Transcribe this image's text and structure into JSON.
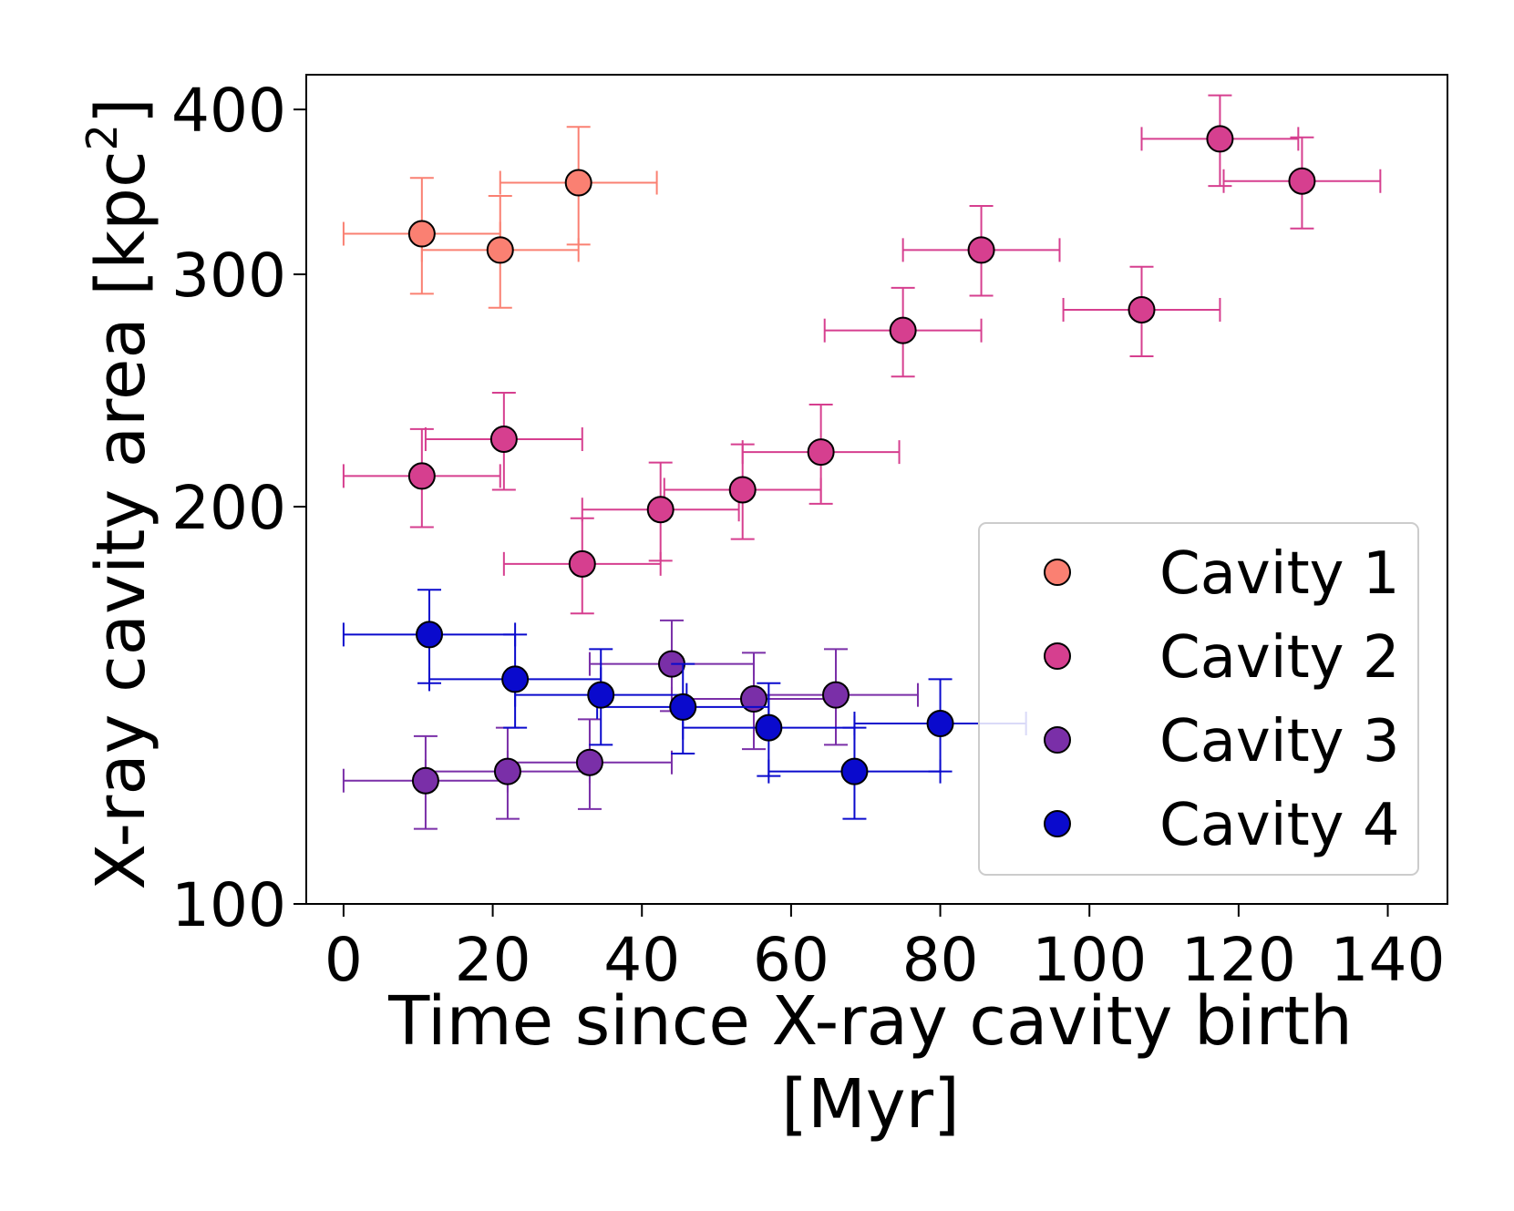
{
  "chart_data": {
    "type": "scatter",
    "title": "",
    "xlabel": "Time since X-ray cavity birth",
    "xlabel_line2": "[Myr]",
    "ylabel_prefix": "X-ray cavity area [kpc",
    "ylabel_sup": "2",
    "ylabel_suffix": "]",
    "xlim": [
      -5,
      148
    ],
    "ylim": [
      100,
      425
    ],
    "yscale": "log",
    "x_ticks": [
      0,
      20,
      40,
      60,
      80,
      100,
      120,
      140
    ],
    "x_tick_labels": [
      "0",
      "20",
      "40",
      "60",
      "80",
      "100",
      "120",
      "140"
    ],
    "y_ticks": [
      100,
      200,
      300,
      400
    ],
    "y_tick_labels": [
      "100",
      "200",
      "300",
      "400"
    ],
    "grid": false,
    "legend_position": "lower-right",
    "series": [
      {
        "name": "Cavity 1",
        "color": "#fa8072",
        "points": [
          {
            "x": 10.5,
            "y": 322,
            "xerr_lo": 10.5,
            "xerr_hi": 10.5,
            "yerr_lo": 32,
            "yerr_hi": 33
          },
          {
            "x": 21,
            "y": 313,
            "xerr_lo": 10.5,
            "xerr_hi": 10.5,
            "yerr_lo": 30,
            "yerr_hi": 31
          },
          {
            "x": 31.5,
            "y": 352,
            "xerr_lo": 10.5,
            "xerr_hi": 10.5,
            "yerr_lo": 36,
            "yerr_hi": 36
          }
        ]
      },
      {
        "name": "Cavity 2",
        "color": "#d63f8f",
        "points": [
          {
            "x": 10.5,
            "y": 211,
            "xerr_lo": 10.5,
            "xerr_hi": 10.5,
            "yerr_lo": 18,
            "yerr_hi": 18
          },
          {
            "x": 21.5,
            "y": 225,
            "xerr_lo": 10.5,
            "xerr_hi": 10.5,
            "yerr_lo": 19,
            "yerr_hi": 19
          },
          {
            "x": 32,
            "y": 181,
            "xerr_lo": 10.5,
            "xerr_hi": 10.5,
            "yerr_lo": 15,
            "yerr_hi": 15
          },
          {
            "x": 42.5,
            "y": 199,
            "xerr_lo": 10.5,
            "xerr_hi": 10.5,
            "yerr_lo": 17,
            "yerr_hi": 17
          },
          {
            "x": 53.5,
            "y": 206,
            "xerr_lo": 10.5,
            "xerr_hi": 10.5,
            "yerr_lo": 17,
            "yerr_hi": 17
          },
          {
            "x": 64,
            "y": 220,
            "xerr_lo": 10.5,
            "xerr_hi": 10.5,
            "yerr_lo": 19,
            "yerr_hi": 19
          },
          {
            "x": 75,
            "y": 272,
            "xerr_lo": 10.5,
            "xerr_hi": 10.5,
            "yerr_lo": 21,
            "yerr_hi": 21
          },
          {
            "x": 85.5,
            "y": 313,
            "xerr_lo": 10.5,
            "xerr_hi": 10.5,
            "yerr_lo": 24,
            "yerr_hi": 25
          },
          {
            "x": 107,
            "y": 282,
            "xerr_lo": 10.5,
            "xerr_hi": 10.5,
            "yerr_lo": 22,
            "yerr_hi": 22
          },
          {
            "x": 117.5,
            "y": 380,
            "xerr_lo": 10.5,
            "xerr_hi": 10.5,
            "yerr_lo": 30,
            "yerr_hi": 30
          },
          {
            "x": 128.5,
            "y": 353,
            "xerr_lo": 10.5,
            "xerr_hi": 10.5,
            "yerr_lo": 28,
            "yerr_hi": 28
          }
        ]
      },
      {
        "name": "Cavity 3",
        "color": "#7a2fa8",
        "points": [
          {
            "x": 11,
            "y": 124,
            "xerr_lo": 11,
            "xerr_hi": 11,
            "yerr_lo": 10,
            "yerr_hi": 10
          },
          {
            "x": 22,
            "y": 126,
            "xerr_lo": 11,
            "xerr_hi": 11,
            "yerr_lo": 10,
            "yerr_hi": 10
          },
          {
            "x": 33,
            "y": 128,
            "xerr_lo": 11,
            "xerr_hi": 11,
            "yerr_lo": 10,
            "yerr_hi": 10
          },
          {
            "x": 44,
            "y": 152,
            "xerr_lo": 11,
            "xerr_hi": 11,
            "yerr_lo": 12,
            "yerr_hi": 12
          },
          {
            "x": 55,
            "y": 143,
            "xerr_lo": 11,
            "xerr_hi": 11,
            "yerr_lo": 12,
            "yerr_hi": 12
          },
          {
            "x": 66,
            "y": 144,
            "xerr_lo": 11,
            "xerr_hi": 11,
            "yerr_lo": 12,
            "yerr_hi": 12
          }
        ]
      },
      {
        "name": "Cavity 4",
        "color": "#0a0acd",
        "points": [
          {
            "x": 11.5,
            "y": 160,
            "xerr_lo": 11.5,
            "xerr_hi": 11.5,
            "yerr_lo": 13,
            "yerr_hi": 13
          },
          {
            "x": 23,
            "y": 148,
            "xerr_lo": 11.5,
            "xerr_hi": 11.5,
            "yerr_lo": 12,
            "yerr_hi": 12
          },
          {
            "x": 34.5,
            "y": 144,
            "xerr_lo": 11.5,
            "xerr_hi": 11.5,
            "yerr_lo": 12,
            "yerr_hi": 12
          },
          {
            "x": 45.5,
            "y": 141,
            "xerr_lo": 11.5,
            "xerr_hi": 11.5,
            "yerr_lo": 11,
            "yerr_hi": 11
          },
          {
            "x": 57,
            "y": 136,
            "xerr_lo": 11.5,
            "xerr_hi": 11.5,
            "yerr_lo": 11,
            "yerr_hi": 11
          },
          {
            "x": 68.5,
            "y": 126,
            "xerr_lo": 11.5,
            "xerr_hi": 11.5,
            "yerr_lo": 10,
            "yerr_hi": 10
          },
          {
            "x": 80,
            "y": 137,
            "xerr_lo": 11.5,
            "xerr_hi": 11.5,
            "yerr_lo": 11,
            "yerr_hi": 11
          }
        ]
      }
    ]
  }
}
